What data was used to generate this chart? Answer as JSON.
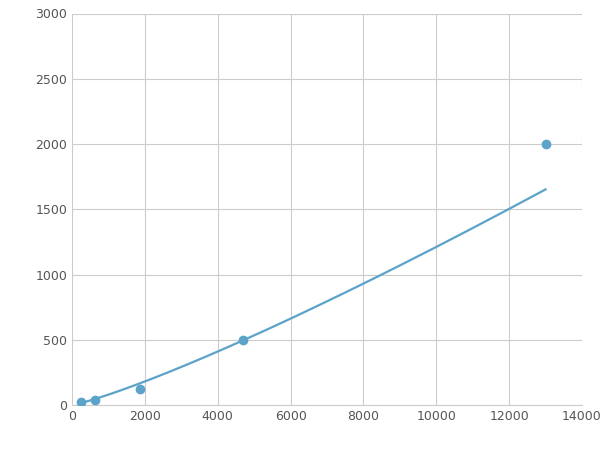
{
  "x_points": [
    250,
    625,
    1875,
    4688,
    13000
  ],
  "y_points": [
    20,
    40,
    120,
    500,
    2000
  ],
  "line_color": "#5ba3c9",
  "marker_color": "#5ba3c9",
  "marker_size": 6,
  "line_width": 1.6,
  "xlim": [
    0,
    14000
  ],
  "ylim": [
    0,
    3000
  ],
  "xticks": [
    0,
    2000,
    4000,
    6000,
    8000,
    10000,
    12000,
    14000
  ],
  "yticks": [
    0,
    500,
    1000,
    1500,
    2000,
    2500,
    3000
  ],
  "grid_color": "#cccccc",
  "background_color": "#ffffff",
  "figsize": [
    6.0,
    4.5
  ],
  "dpi": 100
}
